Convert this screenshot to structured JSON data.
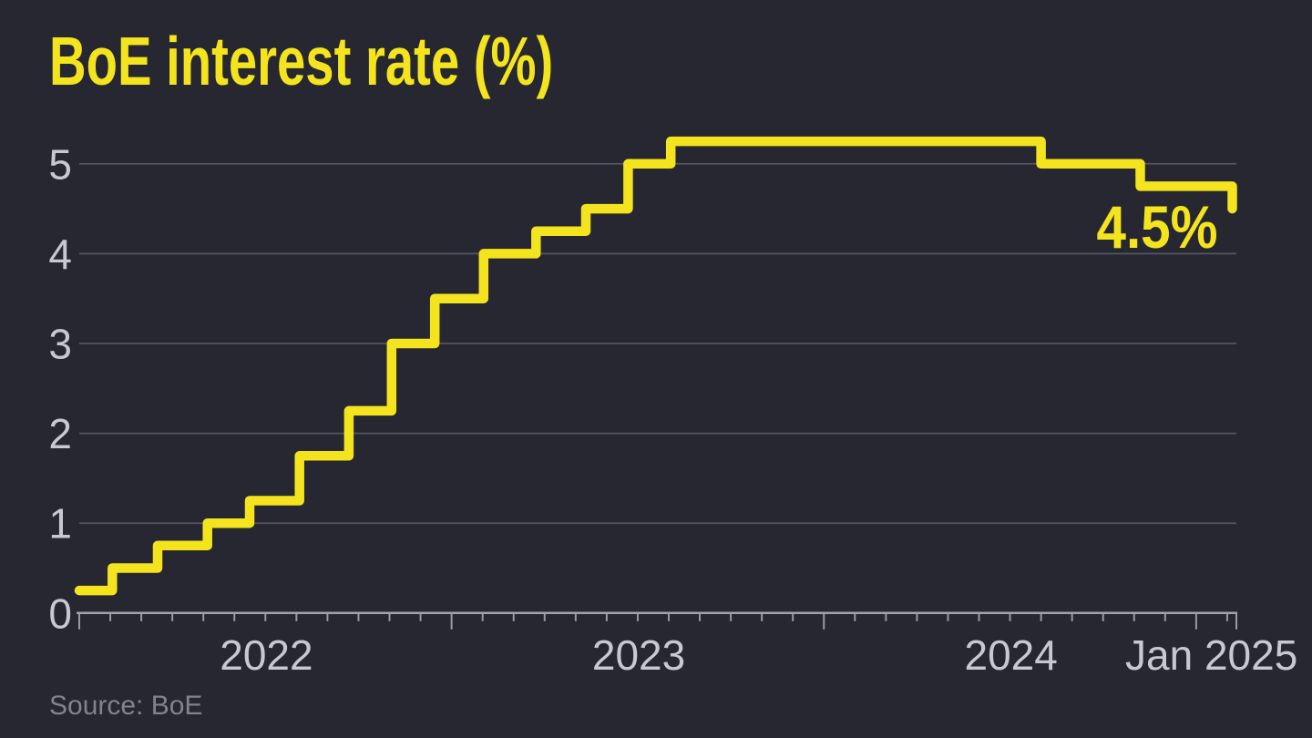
{
  "page": {
    "background": "#272731",
    "accent_yellow": "#F4E41E",
    "grid_color": "#56565f",
    "axis_color": "#a2a2ac",
    "tick_color": "#9a9aa3",
    "label_color": "#c8c8d2",
    "source_color": "#83838c"
  },
  "chart_data": {
    "type": "line",
    "step": "after",
    "title": "BoE interest rate (%)",
    "source": "Source: BoE",
    "ylabel": "",
    "xlabel": "",
    "ylim": [
      0,
      5.4
    ],
    "yticks": [
      0,
      1,
      2,
      3,
      4,
      5
    ],
    "grid": "horizontal",
    "legend": "none",
    "x_start": "2022-01-01",
    "x_end": "2025-02-10",
    "x_tick_labels": [
      {
        "label": "2022",
        "anchor": "2022-07-02"
      },
      {
        "label": "2023",
        "anchor": "2023-07-02"
      },
      {
        "label": "2024",
        "anchor": "2024-07-02"
      },
      {
        "label": "Jan 2025",
        "anchor": "2025-01-16"
      }
    ],
    "series": [
      {
        "name": "BoE interest rate",
        "color": "#F4E41E",
        "end_label": "4.5%",
        "points": [
          {
            "date": "2022-01-01",
            "value": 0.25
          },
          {
            "date": "2022-02-03",
            "value": 0.5
          },
          {
            "date": "2022-03-17",
            "value": 0.75
          },
          {
            "date": "2022-05-05",
            "value": 1.0
          },
          {
            "date": "2022-06-16",
            "value": 1.25
          },
          {
            "date": "2022-08-04",
            "value": 1.75
          },
          {
            "date": "2022-09-22",
            "value": 2.25
          },
          {
            "date": "2022-11-03",
            "value": 3.0
          },
          {
            "date": "2022-12-15",
            "value": 3.5
          },
          {
            "date": "2023-02-02",
            "value": 4.0
          },
          {
            "date": "2023-03-23",
            "value": 4.25
          },
          {
            "date": "2023-05-11",
            "value": 4.5
          },
          {
            "date": "2023-06-22",
            "value": 5.0
          },
          {
            "date": "2023-08-03",
            "value": 5.25
          },
          {
            "date": "2024-08-01",
            "value": 5.0
          },
          {
            "date": "2024-11-07",
            "value": 4.75
          },
          {
            "date": "2025-02-06",
            "value": 4.5
          }
        ]
      }
    ]
  }
}
